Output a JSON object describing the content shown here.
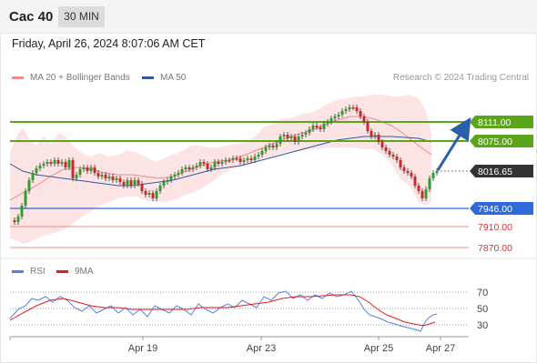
{
  "header": {
    "title": "Cac 40",
    "timeframe": "30 MIN"
  },
  "datetime": "Friday, April 26, 2024 8:07:06 AM CET",
  "legend": {
    "ma20": {
      "label": "MA 20 + Bollinger Bands",
      "color": "#f08a8a"
    },
    "ma50": {
      "label": "MA 50",
      "color": "#34589a"
    }
  },
  "credit": "Research © 2024 Trading Central",
  "levels": {
    "r1": "8111.00",
    "r2": "8075.00",
    "last": "8016.65",
    "s1": "7946.00",
    "s2": "7910.00",
    "s3": "7870.00"
  },
  "rsi": {
    "legend_rsi": "RSI",
    "legend_9ma": "9MA",
    "rsi_color": "#5b7fe0",
    "ma_color": "#e02020",
    "ticks": [
      "70",
      "50",
      "30"
    ]
  },
  "x_axis": [
    "Apr 19",
    "Apr 23",
    "Apr 25",
    "Apr 27"
  ],
  "colors": {
    "resistance": "#5aa51a",
    "support": "#2f6ad9",
    "target": "#e03030",
    "up": "#2e9e2e",
    "down": "#cc2a2a",
    "arrow": "#2a5faa"
  }
}
